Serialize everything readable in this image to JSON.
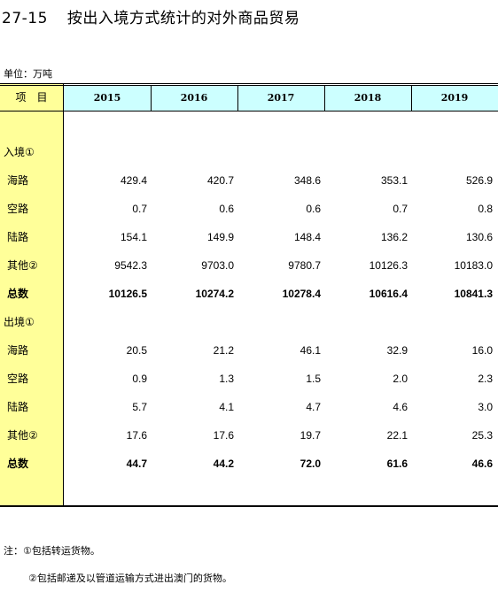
{
  "title": {
    "number": "27-15",
    "text": "按出入境方式统计的对外商品贸易"
  },
  "unit": "单位：万吨",
  "header": {
    "stub": "项　目",
    "years": [
      "2015",
      "2016",
      "2017",
      "2018",
      "2019"
    ]
  },
  "sections": [
    {
      "heading": "入境①",
      "rows": [
        {
          "label": "海路",
          "values": [
            "429.4",
            "420.7",
            "348.6",
            "353.1",
            "526.9"
          ]
        },
        {
          "label": "空路",
          "values": [
            "0.7",
            "0.6",
            "0.6",
            "0.7",
            "0.8"
          ]
        },
        {
          "label": "陆路",
          "values": [
            "154.1",
            "149.9",
            "148.4",
            "136.2",
            "130.6"
          ]
        },
        {
          "label": "其他②",
          "values": [
            "9542.3",
            "9703.0",
            "9780.7",
            "10126.3",
            "10183.0"
          ]
        },
        {
          "label": "总数",
          "values": [
            "10126.5",
            "10274.2",
            "10278.4",
            "10616.4",
            "10841.3"
          ],
          "bold": true
        }
      ]
    },
    {
      "heading": "出境①",
      "rows": [
        {
          "label": "海路",
          "values": [
            "20.5",
            "21.2",
            "46.1",
            "32.9",
            "16.0"
          ]
        },
        {
          "label": "空路",
          "values": [
            "0.9",
            "1.3",
            "1.5",
            "2.0",
            "2.3"
          ]
        },
        {
          "label": "陆路",
          "values": [
            "5.7",
            "4.1",
            "4.7",
            "4.6",
            "3.0"
          ]
        },
        {
          "label": "其他②",
          "values": [
            "17.6",
            "17.6",
            "19.7",
            "22.1",
            "25.3"
          ]
        },
        {
          "label": "总数",
          "values": [
            "44.7",
            "44.2",
            "72.0",
            "61.6",
            "46.6"
          ],
          "bold": true
        }
      ]
    }
  ],
  "notes": [
    "注：①包括转运货物。",
    "②包括邮递及以管道运输方式进出澳门的货物。"
  ]
}
